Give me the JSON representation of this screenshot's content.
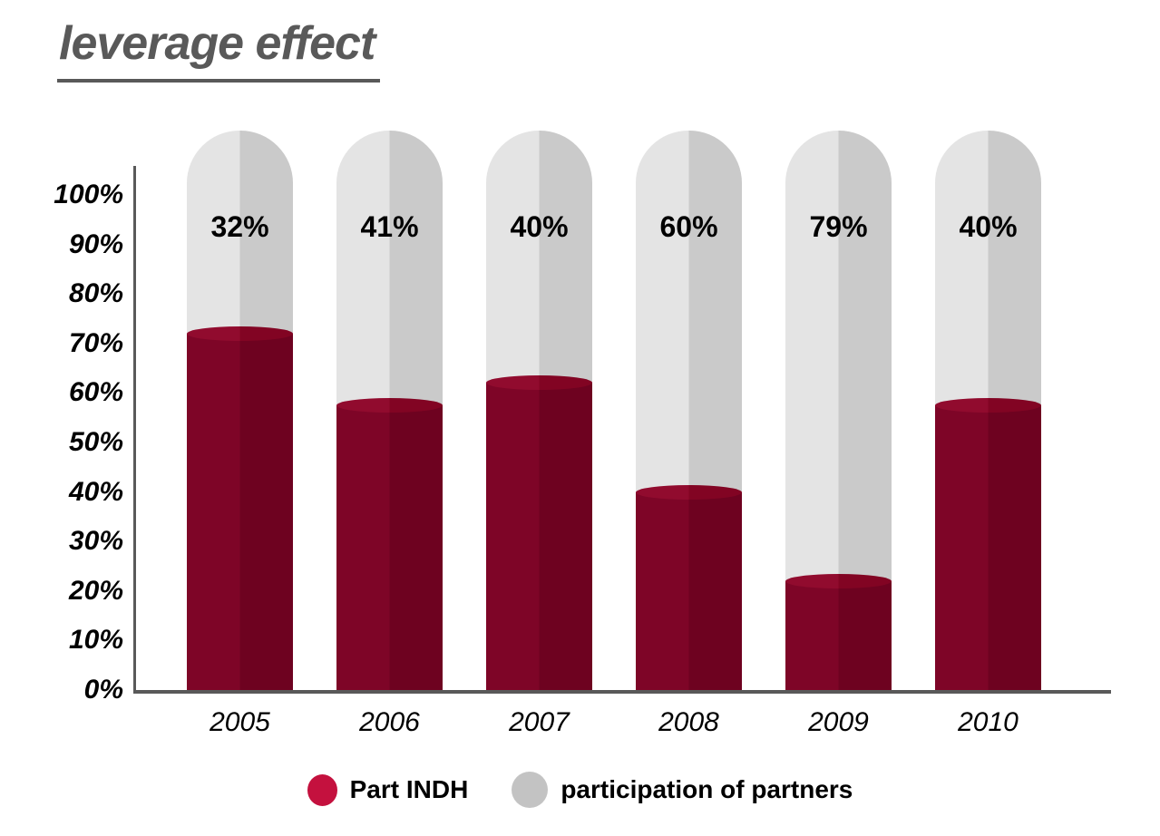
{
  "title": "leverage effect",
  "chart_data": {
    "type": "bar",
    "subtype": "stacked-cylinder-columns",
    "title": "leverage effect",
    "categories": [
      "2005",
      "2006",
      "2007",
      "2008",
      "2009",
      "2010"
    ],
    "series": [
      {
        "name": "Part INDH",
        "unit": "%",
        "values": [
          72,
          57.5,
          62,
          40,
          22,
          57.5
        ],
        "color": "#7e0527"
      },
      {
        "name": "participation of partners",
        "unit": "%",
        "values": [
          32,
          41,
          40,
          60,
          79,
          40
        ],
        "data_labels": [
          "32%",
          "41%",
          "40%",
          "60%",
          "79%",
          "40%"
        ],
        "color": "#d0d0d0"
      }
    ],
    "ylim": [
      0,
      100
    ],
    "y_ticks": [
      "100%",
      "90%",
      "80%",
      "70%",
      "60%",
      "50%",
      "40%",
      "30%",
      "20%",
      "10%",
      "0%"
    ],
    "grid": false,
    "legend_position": "bottom",
    "notes": "Gray cylinders rise above the 100% line with rounded dome tops; percentage labels printed near column tops refer to the gray 'participation of partners' share."
  },
  "colors": {
    "title_text": "#595959",
    "axis_line": "#595959",
    "label_text": "#000000",
    "bar_red_left": "#7e0527",
    "bar_red_right": "#6e0220",
    "bar_red_top": "#910b2e",
    "bar_red_top_right": "#820423",
    "bar_gray_left": "#e4e4e4",
    "bar_gray_right": "#cacaca",
    "legend_red_dot": "#c4113e",
    "legend_gray_dot": "#c3c3c3"
  }
}
